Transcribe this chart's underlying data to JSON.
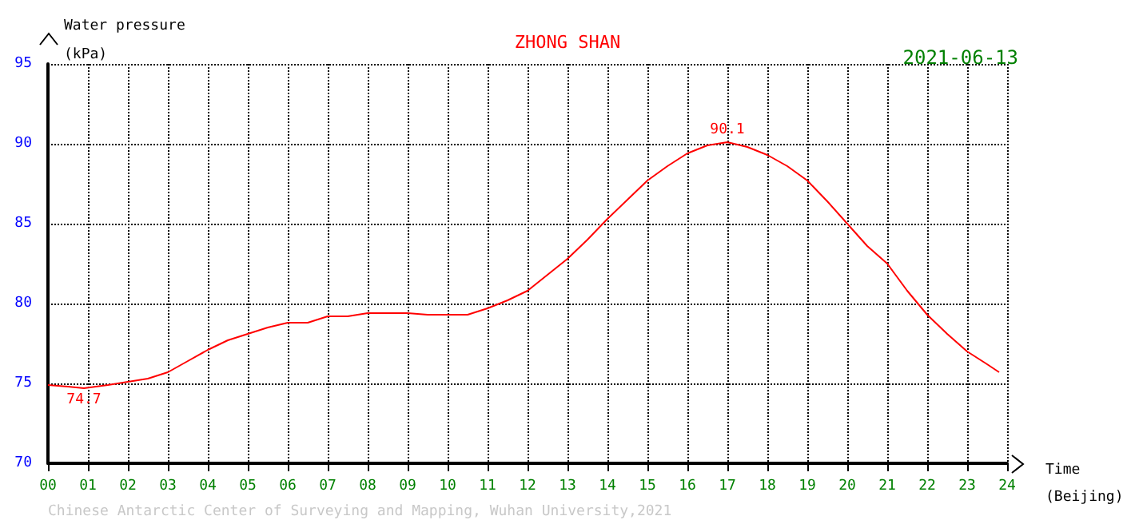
{
  "chart_data": {
    "type": "line",
    "title": "ZHONG SHAN",
    "subtitle": "2021-06-13",
    "ylabel": "Water pressure\n(kPa)",
    "xlabel": "Time\n(Beijing)",
    "x": [
      0,
      0.5,
      0.9,
      1.5,
      2,
      2.5,
      3,
      3.5,
      4,
      4.5,
      5,
      5.5,
      6,
      6.5,
      7,
      7.5,
      8,
      8.5,
      9,
      9.5,
      10,
      10.5,
      11,
      11.5,
      12,
      12.5,
      13,
      13.5,
      14,
      14.5,
      15,
      15.5,
      16,
      16.5,
      17,
      17.5,
      18,
      18.5,
      19,
      19.5,
      20,
      20.5,
      21,
      21.5,
      22,
      22.5,
      23,
      23.5,
      23.8
    ],
    "series": [
      {
        "color": "#ff0000",
        "values": [
          74.9,
          74.8,
          74.7,
          74.9,
          75.1,
          75.3,
          75.7,
          76.4,
          77.1,
          77.7,
          78.1,
          78.5,
          78.8,
          78.8,
          79.2,
          79.2,
          79.4,
          79.4,
          79.4,
          79.3,
          79.3,
          79.3,
          79.7,
          80.2,
          80.8,
          81.8,
          82.8,
          84.0,
          85.3,
          86.5,
          87.7,
          88.6,
          89.4,
          89.9,
          90.1,
          89.8,
          89.3,
          88.6,
          87.7,
          86.4,
          85.0,
          83.6,
          82.5,
          80.8,
          79.3,
          78.1,
          77.0,
          76.2,
          75.7
        ]
      }
    ],
    "xlim": [
      0,
      24
    ],
    "ylim": [
      70,
      95
    ],
    "xticks": [
      {
        "value": 0,
        "label": "00"
      },
      {
        "value": 1,
        "label": "01"
      },
      {
        "value": 2,
        "label": "02"
      },
      {
        "value": 3,
        "label": "03"
      },
      {
        "value": 4,
        "label": "04"
      },
      {
        "value": 5,
        "label": "05"
      },
      {
        "value": 6,
        "label": "06"
      },
      {
        "value": 7,
        "label": "07"
      },
      {
        "value": 8,
        "label": "08"
      },
      {
        "value": 9,
        "label": "09"
      },
      10,
      11,
      12,
      13,
      14,
      15,
      16,
      17,
      18,
      19,
      20,
      21,
      22,
      23,
      24
    ],
    "yticks": [
      70,
      75,
      80,
      85,
      90,
      95
    ],
    "grid": true,
    "marker": "none",
    "line_style": "solid",
    "annotations": [
      {
        "text": "74.7",
        "x": 0.9,
        "y": 74.7
      },
      {
        "text": "90.1",
        "x": 17,
        "y": 90.1
      },
      "Chinese Antarctic Center of Surveying and Mapping, Wuhan University,2021"
    ]
  }
}
